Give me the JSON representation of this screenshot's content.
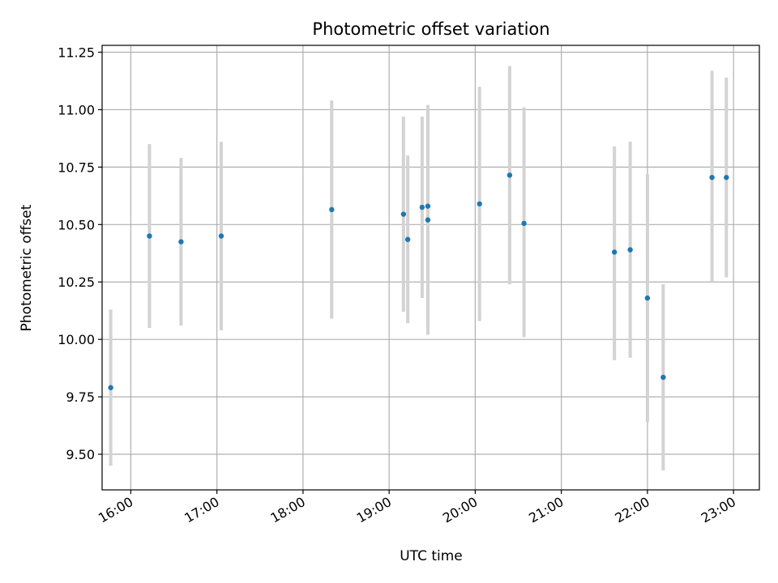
{
  "chart_data": {
    "type": "scatter",
    "title": "Photometric offset variation",
    "xlabel": "UTC time",
    "ylabel": "Photometric offset",
    "xlim": [
      "15:40",
      "23:18"
    ],
    "ylim": [
      9.345,
      11.28
    ],
    "x_ticks": [
      "16:00",
      "17:00",
      "18:00",
      "19:00",
      "20:00",
      "21:00",
      "22:00",
      "23:00"
    ],
    "y_ticks": [
      9.5,
      9.75,
      10.0,
      10.25,
      10.5,
      10.75,
      11.0,
      11.25
    ],
    "y_tick_labels": [
      "9.50",
      "9.75",
      "10.00",
      "10.25",
      "10.50",
      "10.75",
      "11.00",
      "11.25"
    ],
    "grid": true,
    "point_color": "#1f77b4",
    "errorbar_color": "#d3d3d3",
    "points": [
      {
        "x": "15:46",
        "y": 9.79,
        "ylow": 9.45,
        "yhigh": 10.13
      },
      {
        "x": "16:13",
        "y": 10.45,
        "ylow": 10.05,
        "yhigh": 10.85
      },
      {
        "x": "16:35",
        "y": 10.425,
        "ylow": 10.06,
        "yhigh": 10.79
      },
      {
        "x": "17:03",
        "y": 10.45,
        "ylow": 10.04,
        "yhigh": 10.86
      },
      {
        "x": "18:20",
        "y": 10.565,
        "ylow": 10.09,
        "yhigh": 11.04
      },
      {
        "x": "19:10",
        "y": 10.545,
        "ylow": 10.12,
        "yhigh": 10.97
      },
      {
        "x": "19:13",
        "y": 10.435,
        "ylow": 10.07,
        "yhigh": 10.8
      },
      {
        "x": "19:23",
        "y": 10.575,
        "ylow": 10.18,
        "yhigh": 10.97
      },
      {
        "x": "19:27",
        "y": 10.58,
        "ylow": 10.02,
        "yhigh": 11.02
      },
      {
        "x": "19:27",
        "y": 10.52,
        "ylow": 10.02,
        "yhigh": 11.02
      },
      {
        "x": "20:03",
        "y": 10.59,
        "ylow": 10.08,
        "yhigh": 11.1
      },
      {
        "x": "20:24",
        "y": 10.715,
        "ylow": 10.24,
        "yhigh": 11.19
      },
      {
        "x": "20:34",
        "y": 10.505,
        "ylow": 10.01,
        "yhigh": 11.01
      },
      {
        "x": "21:37",
        "y": 10.38,
        "ylow": 9.91,
        "yhigh": 10.84
      },
      {
        "x": "21:48",
        "y": 10.39,
        "ylow": 9.92,
        "yhigh": 10.86
      },
      {
        "x": "22:00",
        "y": 10.18,
        "ylow": 9.64,
        "yhigh": 10.72
      },
      {
        "x": "22:11",
        "y": 9.835,
        "ylow": 9.43,
        "yhigh": 10.24
      },
      {
        "x": "22:45",
        "y": 10.705,
        "ylow": 10.25,
        "yhigh": 11.17
      },
      {
        "x": "22:55",
        "y": 10.705,
        "ylow": 10.27,
        "yhigh": 11.14
      }
    ]
  }
}
